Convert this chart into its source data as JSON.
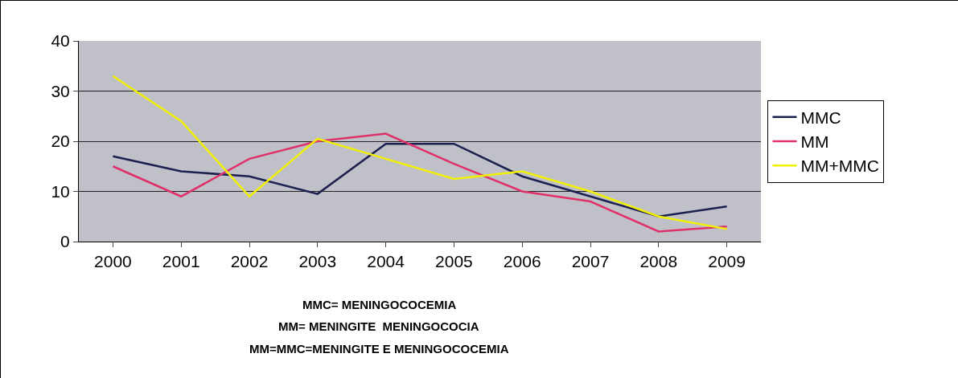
{
  "chart_data": {
    "type": "line",
    "categories": [
      "2000",
      "2001",
      "2002",
      "2003",
      "2004",
      "2005",
      "2006",
      "2007",
      "2008",
      "2009"
    ],
    "series": [
      {
        "name": "MMC",
        "color": "#1c2050",
        "values": [
          17,
          14,
          13,
          9.5,
          19.5,
          19.5,
          13,
          9,
          5,
          7
        ]
      },
      {
        "name": "MM",
        "color": "#e0306a",
        "values": [
          15,
          9,
          16.5,
          20,
          21.5,
          15.5,
          10,
          8,
          2,
          3
        ]
      },
      {
        "name": "MM+MMC",
        "color": "#f0f000",
        "values": [
          33,
          24,
          9,
          20.5,
          16.5,
          12.5,
          14,
          10,
          5,
          2.5
        ]
      }
    ],
    "ylim": [
      0,
      40
    ],
    "yticks": [
      0,
      10,
      20,
      30,
      40
    ],
    "grid": "y",
    "legend": "right",
    "marker": "none",
    "line_style": "solid",
    "annotations": [
      "MMC= MENINGOCOCEMIA",
      "MM= MENINGITE  MENINGOCOCIA",
      "MM=MMC=MENINGITE E MENINGOCOCEMIA"
    ]
  }
}
